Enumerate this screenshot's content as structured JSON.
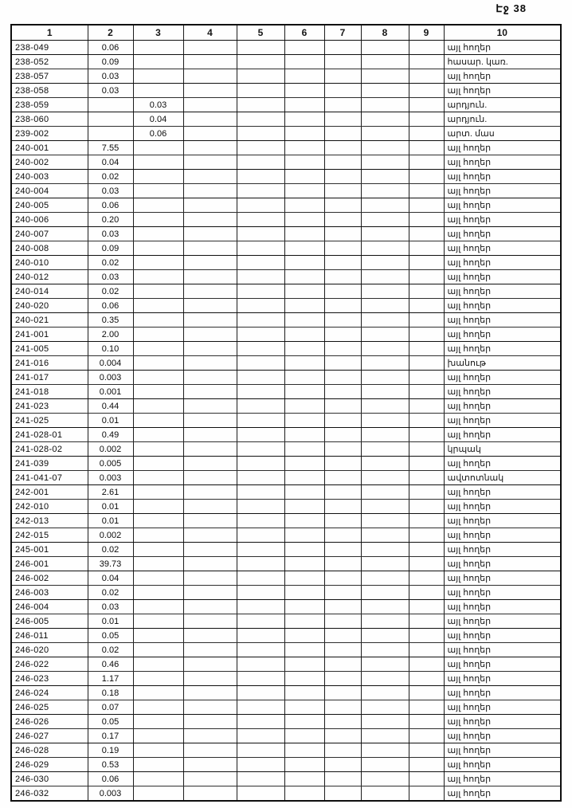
{
  "page": {
    "label": "Էջ 38"
  },
  "table": {
    "headers": [
      "1",
      "2",
      "3",
      "4",
      "5",
      "6",
      "7",
      "8",
      "9",
      "10"
    ],
    "rows": [
      {
        "code": "238-049",
        "value": "0.06",
        "value_col": 2,
        "land_use": "այլ հողեր"
      },
      {
        "code": "238-052",
        "value": "0.09",
        "value_col": 2,
        "land_use": "հասար. կառ."
      },
      {
        "code": "238-057",
        "value": "0.03",
        "value_col": 2,
        "land_use": "այլ հողեր"
      },
      {
        "code": "238-058",
        "value": "0.03",
        "value_col": 2,
        "land_use": "այլ հողեր"
      },
      {
        "code": "238-059",
        "value": "0.03",
        "value_col": 3,
        "land_use": "արդյուն."
      },
      {
        "code": "238-060",
        "value": "0.04",
        "value_col": 3,
        "land_use": "արդյուն."
      },
      {
        "code": "239-002",
        "value": "0.06",
        "value_col": 3,
        "land_use": "արտ. մաս"
      },
      {
        "code": "240-001",
        "value": "7.55",
        "value_col": 2,
        "land_use": "այլ հողեր"
      },
      {
        "code": "240-002",
        "value": "0.04",
        "value_col": 2,
        "land_use": "այլ հողեր"
      },
      {
        "code": "240-003",
        "value": "0.02",
        "value_col": 2,
        "land_use": "այլ հողեր"
      },
      {
        "code": "240-004",
        "value": "0.03",
        "value_col": 2,
        "land_use": "այլ հողեր"
      },
      {
        "code": "240-005",
        "value": "0.06",
        "value_col": 2,
        "land_use": "այլ հողեր"
      },
      {
        "code": "240-006",
        "value": "0.20",
        "value_col": 2,
        "land_use": "այլ հողեր"
      },
      {
        "code": "240-007",
        "value": "0.03",
        "value_col": 2,
        "land_use": "այլ հողեր"
      },
      {
        "code": "240-008",
        "value": "0.09",
        "value_col": 2,
        "land_use": "այլ հողեր"
      },
      {
        "code": "240-010",
        "value": "0.02",
        "value_col": 2,
        "land_use": "այլ հողեր"
      },
      {
        "code": "240-012",
        "value": "0.03",
        "value_col": 2,
        "land_use": "այլ հողեր"
      },
      {
        "code": "240-014",
        "value": "0.02",
        "value_col": 2,
        "land_use": "այլ հողեր"
      },
      {
        "code": "240-020",
        "value": "0.06",
        "value_col": 2,
        "land_use": "այլ հողեր"
      },
      {
        "code": "240-021",
        "value": "0.35",
        "value_col": 2,
        "land_use": "այլ հողեր"
      },
      {
        "code": "241-001",
        "value": "2.00",
        "value_col": 2,
        "land_use": "այլ հողեր"
      },
      {
        "code": "241-005",
        "value": "0.10",
        "value_col": 2,
        "land_use": "այլ հողեր"
      },
      {
        "code": "241-016",
        "value": "0.004",
        "value_col": 2,
        "land_use": "խանութ"
      },
      {
        "code": "241-017",
        "value": "0.003",
        "value_col": 2,
        "land_use": "այլ հողեր"
      },
      {
        "code": "241-018",
        "value": "0.001",
        "value_col": 2,
        "land_use": "այլ հողեր"
      },
      {
        "code": "241-023",
        "value": "0.44",
        "value_col": 2,
        "land_use": "այլ հողեր"
      },
      {
        "code": "241-025",
        "value": "0.01",
        "value_col": 2,
        "land_use": "այլ հողեր"
      },
      {
        "code": "241-028-01",
        "value": "0.49",
        "value_col": 2,
        "land_use": "այլ հողեր"
      },
      {
        "code": "241-028-02",
        "value": "0.002",
        "value_col": 2,
        "land_use": "կրպակ"
      },
      {
        "code": "241-039",
        "value": "0.005",
        "value_col": 2,
        "land_use": "այլ հողեր"
      },
      {
        "code": "241-041-07",
        "value": "0.003",
        "value_col": 2,
        "land_use": "ավտոտնակ"
      },
      {
        "code": "242-001",
        "value": "2.61",
        "value_col": 2,
        "land_use": "այլ հողեր"
      },
      {
        "code": "242-010",
        "value": "0.01",
        "value_col": 2,
        "land_use": "այլ հողեր"
      },
      {
        "code": "242-013",
        "value": "0.01",
        "value_col": 2,
        "land_use": "այլ հողեր"
      },
      {
        "code": "242-015",
        "value": "0.002",
        "value_col": 2,
        "land_use": "այլ հողեր"
      },
      {
        "code": "245-001",
        "value": "0.02",
        "value_col": 2,
        "land_use": "այլ հողեր"
      },
      {
        "code": "246-001",
        "value": "39.73",
        "value_col": 2,
        "land_use": "այլ հողեր"
      },
      {
        "code": "246-002",
        "value": "0.04",
        "value_col": 2,
        "land_use": "այլ հողեր"
      },
      {
        "code": "246-003",
        "value": "0.02",
        "value_col": 2,
        "land_use": "այլ հողեր"
      },
      {
        "code": "246-004",
        "value": "0.03",
        "value_col": 2,
        "land_use": "այլ հողեր"
      },
      {
        "code": "246-005",
        "value": "0.01",
        "value_col": 2,
        "land_use": "այլ հողեր"
      },
      {
        "code": "246-011",
        "value": "0.05",
        "value_col": 2,
        "land_use": "այլ հողեր"
      },
      {
        "code": "246-020",
        "value": "0.02",
        "value_col": 2,
        "land_use": "այլ հողեր"
      },
      {
        "code": "246-022",
        "value": "0.46",
        "value_col": 2,
        "land_use": "այլ հողեր"
      },
      {
        "code": "246-023",
        "value": "1.17",
        "value_col": 2,
        "land_use": "այլ հողեր"
      },
      {
        "code": "246-024",
        "value": "0.18",
        "value_col": 2,
        "land_use": "այլ հողեր"
      },
      {
        "code": "246-025",
        "value": "0.07",
        "value_col": 2,
        "land_use": "այլ հողեր"
      },
      {
        "code": "246-026",
        "value": "0.05",
        "value_col": 2,
        "land_use": "այլ հողեր"
      },
      {
        "code": "246-027",
        "value": "0.17",
        "value_col": 2,
        "land_use": "այլ հողեր"
      },
      {
        "code": "246-028",
        "value": "0.19",
        "value_col": 2,
        "land_use": "այլ հողեր"
      },
      {
        "code": "246-029",
        "value": "0.53",
        "value_col": 2,
        "land_use": "այլ հողեր"
      },
      {
        "code": "246-030",
        "value": "0.06",
        "value_col": 2,
        "land_use": "այլ հողեր"
      },
      {
        "code": "246-032",
        "value": "0.003",
        "value_col": 2,
        "land_use": "այլ հողեր"
      }
    ]
  }
}
